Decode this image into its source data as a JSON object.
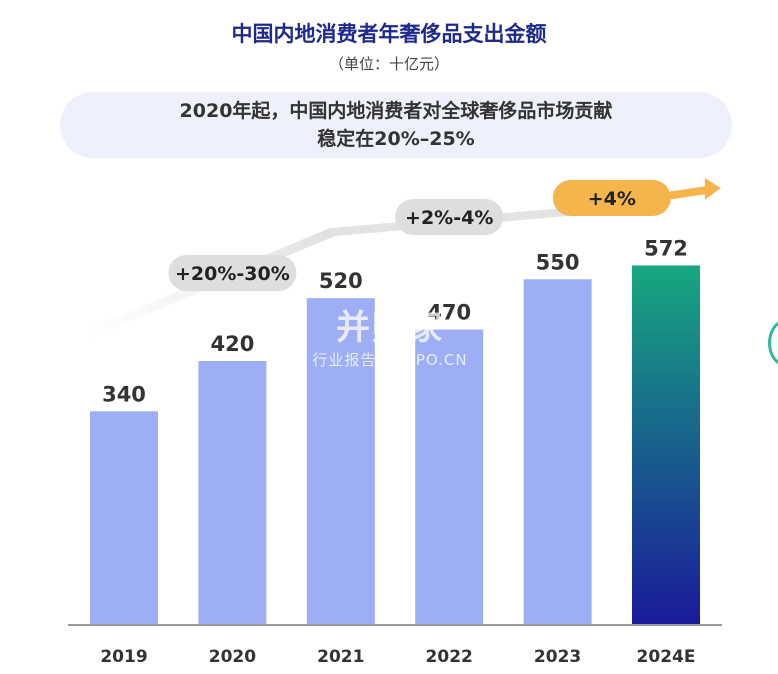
{
  "header": {
    "title": "中国内地消费者年奢侈品支出金额",
    "subtitle": "（单位：十亿元）"
  },
  "banner": {
    "line1": "2020年起，中国内地消费者对全球奢侈品市场贡献",
    "line2": "稳定在20%–25%"
  },
  "watermark": {
    "logo_text": "并购家",
    "sub_text": "行业报告 IPOIPO.CN"
  },
  "colors": {
    "bar": "#9eaef5",
    "bar_highlight_top": "#17a77f",
    "bar_highlight_bottom": "#1a1a9a",
    "growth_pill": "#dedede",
    "growth_pill_highlight": "#f6b54c",
    "axis": "#999999"
  },
  "chart_data": {
    "type": "bar",
    "categories": [
      "2019",
      "2020",
      "2021",
      "2022",
      "2023",
      "2024E"
    ],
    "values": [
      340,
      420,
      520,
      470,
      550,
      572
    ],
    "highlight_index": 5,
    "ylim": [
      0,
      700
    ],
    "grid": false,
    "annotations": [
      {
        "text": "+20%-30%",
        "from": "2019",
        "to": "2021",
        "style": "gray"
      },
      {
        "text": "+2%-4%",
        "from": "2021",
        "to": "2023",
        "style": "gray"
      },
      {
        "text": "+4%",
        "from": "2023",
        "to": "2024E",
        "style": "orange"
      }
    ]
  }
}
